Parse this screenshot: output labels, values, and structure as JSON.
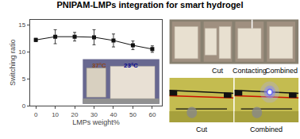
{
  "chart_data": {
    "type": "line",
    "title": "PNIPAM-LMPs integration for smart hydrogel",
    "x_label": "LMPs weight%",
    "y_label": "Switching ratio",
    "x": [
      0,
      10,
      20,
      30,
      40,
      50,
      60
    ],
    "values": [
      12.2,
      12.8,
      12.8,
      12.7,
      12.1,
      11.2,
      10.5
    ],
    "error": [
      0.3,
      1.3,
      0.8,
      1.4,
      1.2,
      0.8,
      0.6
    ],
    "xlim": [
      -3,
      65
    ],
    "xticks": [
      0,
      10,
      20,
      30,
      40,
      50,
      60
    ],
    "ylim": [
      0,
      16
    ],
    "yticks": [
      0,
      5,
      10,
      15
    ],
    "color": "#111111",
    "marker": "square",
    "grid": false,
    "legend": false,
    "inset_labels": [
      {
        "text": "37°C",
        "color": "#8B4513"
      },
      {
        "text": "23°C",
        "color": "#00008B"
      }
    ],
    "top_row_labels": [
      "Cut",
      "Contacting",
      "Combined"
    ],
    "bottom_row_labels": [
      "Cut",
      "Combined"
    ]
  }
}
